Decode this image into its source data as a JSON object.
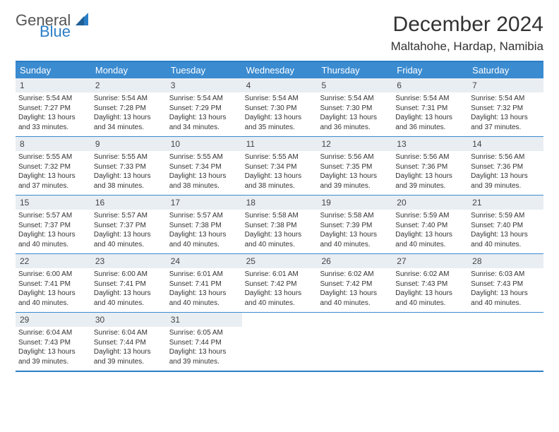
{
  "brand": {
    "general": "General",
    "blue": "Blue"
  },
  "title": "December 2024",
  "location": "Maltahohe, Hardap, Namibia",
  "header_bg": "#3b8bd0",
  "accent_border": "#2a7ec6",
  "daynum_bg": "#e9eef3",
  "weekdays": [
    "Sunday",
    "Monday",
    "Tuesday",
    "Wednesday",
    "Thursday",
    "Friday",
    "Saturday"
  ],
  "weeks": [
    [
      {
        "n": "1",
        "sr": "Sunrise: 5:54 AM",
        "ss": "Sunset: 7:27 PM",
        "d1": "Daylight: 13 hours",
        "d2": "and 33 minutes."
      },
      {
        "n": "2",
        "sr": "Sunrise: 5:54 AM",
        "ss": "Sunset: 7:28 PM",
        "d1": "Daylight: 13 hours",
        "d2": "and 34 minutes."
      },
      {
        "n": "3",
        "sr": "Sunrise: 5:54 AM",
        "ss": "Sunset: 7:29 PM",
        "d1": "Daylight: 13 hours",
        "d2": "and 34 minutes."
      },
      {
        "n": "4",
        "sr": "Sunrise: 5:54 AM",
        "ss": "Sunset: 7:30 PM",
        "d1": "Daylight: 13 hours",
        "d2": "and 35 minutes."
      },
      {
        "n": "5",
        "sr": "Sunrise: 5:54 AM",
        "ss": "Sunset: 7:30 PM",
        "d1": "Daylight: 13 hours",
        "d2": "and 36 minutes."
      },
      {
        "n": "6",
        "sr": "Sunrise: 5:54 AM",
        "ss": "Sunset: 7:31 PM",
        "d1": "Daylight: 13 hours",
        "d2": "and 36 minutes."
      },
      {
        "n": "7",
        "sr": "Sunrise: 5:54 AM",
        "ss": "Sunset: 7:32 PM",
        "d1": "Daylight: 13 hours",
        "d2": "and 37 minutes."
      }
    ],
    [
      {
        "n": "8",
        "sr": "Sunrise: 5:55 AM",
        "ss": "Sunset: 7:32 PM",
        "d1": "Daylight: 13 hours",
        "d2": "and 37 minutes."
      },
      {
        "n": "9",
        "sr": "Sunrise: 5:55 AM",
        "ss": "Sunset: 7:33 PM",
        "d1": "Daylight: 13 hours",
        "d2": "and 38 minutes."
      },
      {
        "n": "10",
        "sr": "Sunrise: 5:55 AM",
        "ss": "Sunset: 7:34 PM",
        "d1": "Daylight: 13 hours",
        "d2": "and 38 minutes."
      },
      {
        "n": "11",
        "sr": "Sunrise: 5:55 AM",
        "ss": "Sunset: 7:34 PM",
        "d1": "Daylight: 13 hours",
        "d2": "and 38 minutes."
      },
      {
        "n": "12",
        "sr": "Sunrise: 5:56 AM",
        "ss": "Sunset: 7:35 PM",
        "d1": "Daylight: 13 hours",
        "d2": "and 39 minutes."
      },
      {
        "n": "13",
        "sr": "Sunrise: 5:56 AM",
        "ss": "Sunset: 7:36 PM",
        "d1": "Daylight: 13 hours",
        "d2": "and 39 minutes."
      },
      {
        "n": "14",
        "sr": "Sunrise: 5:56 AM",
        "ss": "Sunset: 7:36 PM",
        "d1": "Daylight: 13 hours",
        "d2": "and 39 minutes."
      }
    ],
    [
      {
        "n": "15",
        "sr": "Sunrise: 5:57 AM",
        "ss": "Sunset: 7:37 PM",
        "d1": "Daylight: 13 hours",
        "d2": "and 40 minutes."
      },
      {
        "n": "16",
        "sr": "Sunrise: 5:57 AM",
        "ss": "Sunset: 7:37 PM",
        "d1": "Daylight: 13 hours",
        "d2": "and 40 minutes."
      },
      {
        "n": "17",
        "sr": "Sunrise: 5:57 AM",
        "ss": "Sunset: 7:38 PM",
        "d1": "Daylight: 13 hours",
        "d2": "and 40 minutes."
      },
      {
        "n": "18",
        "sr": "Sunrise: 5:58 AM",
        "ss": "Sunset: 7:38 PM",
        "d1": "Daylight: 13 hours",
        "d2": "and 40 minutes."
      },
      {
        "n": "19",
        "sr": "Sunrise: 5:58 AM",
        "ss": "Sunset: 7:39 PM",
        "d1": "Daylight: 13 hours",
        "d2": "and 40 minutes."
      },
      {
        "n": "20",
        "sr": "Sunrise: 5:59 AM",
        "ss": "Sunset: 7:40 PM",
        "d1": "Daylight: 13 hours",
        "d2": "and 40 minutes."
      },
      {
        "n": "21",
        "sr": "Sunrise: 5:59 AM",
        "ss": "Sunset: 7:40 PM",
        "d1": "Daylight: 13 hours",
        "d2": "and 40 minutes."
      }
    ],
    [
      {
        "n": "22",
        "sr": "Sunrise: 6:00 AM",
        "ss": "Sunset: 7:41 PM",
        "d1": "Daylight: 13 hours",
        "d2": "and 40 minutes."
      },
      {
        "n": "23",
        "sr": "Sunrise: 6:00 AM",
        "ss": "Sunset: 7:41 PM",
        "d1": "Daylight: 13 hours",
        "d2": "and 40 minutes."
      },
      {
        "n": "24",
        "sr": "Sunrise: 6:01 AM",
        "ss": "Sunset: 7:41 PM",
        "d1": "Daylight: 13 hours",
        "d2": "and 40 minutes."
      },
      {
        "n": "25",
        "sr": "Sunrise: 6:01 AM",
        "ss": "Sunset: 7:42 PM",
        "d1": "Daylight: 13 hours",
        "d2": "and 40 minutes."
      },
      {
        "n": "26",
        "sr": "Sunrise: 6:02 AM",
        "ss": "Sunset: 7:42 PM",
        "d1": "Daylight: 13 hours",
        "d2": "and 40 minutes."
      },
      {
        "n": "27",
        "sr": "Sunrise: 6:02 AM",
        "ss": "Sunset: 7:43 PM",
        "d1": "Daylight: 13 hours",
        "d2": "and 40 minutes."
      },
      {
        "n": "28",
        "sr": "Sunrise: 6:03 AM",
        "ss": "Sunset: 7:43 PM",
        "d1": "Daylight: 13 hours",
        "d2": "and 40 minutes."
      }
    ],
    [
      {
        "n": "29",
        "sr": "Sunrise: 6:04 AM",
        "ss": "Sunset: 7:43 PM",
        "d1": "Daylight: 13 hours",
        "d2": "and 39 minutes."
      },
      {
        "n": "30",
        "sr": "Sunrise: 6:04 AM",
        "ss": "Sunset: 7:44 PM",
        "d1": "Daylight: 13 hours",
        "d2": "and 39 minutes."
      },
      {
        "n": "31",
        "sr": "Sunrise: 6:05 AM",
        "ss": "Sunset: 7:44 PM",
        "d1": "Daylight: 13 hours",
        "d2": "and 39 minutes."
      },
      {
        "empty": true
      },
      {
        "empty": true
      },
      {
        "empty": true
      },
      {
        "empty": true
      }
    ]
  ]
}
